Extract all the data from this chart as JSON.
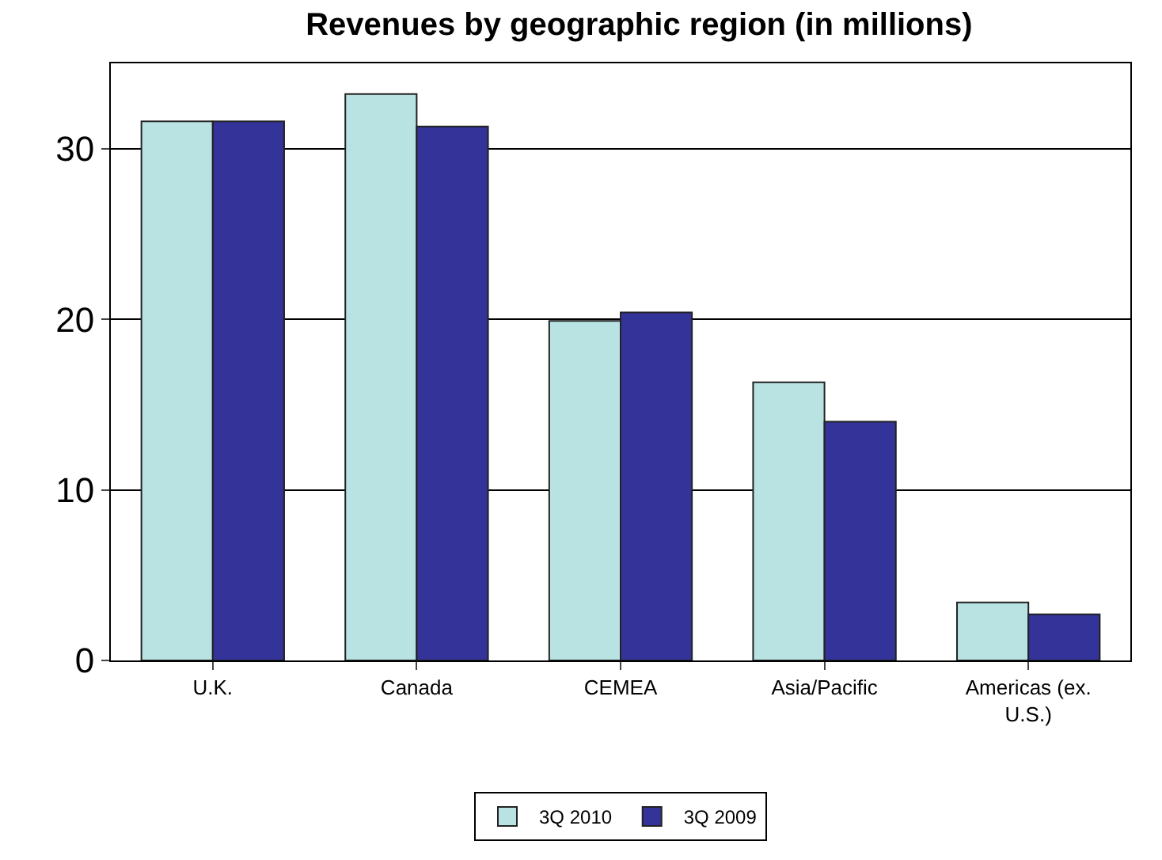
{
  "chart_data": {
    "type": "bar",
    "title": "Revenues by geographic region (in millions)",
    "categories": [
      "U.K.",
      "Canada",
      "CEMEA",
      "Asia/Pacific",
      "Americas (ex.\nU.S.)"
    ],
    "series": [
      {
        "name": "3Q 2010",
        "color": "#b9e3e3",
        "values": [
          31.6,
          33.2,
          19.9,
          16.3,
          3.4
        ]
      },
      {
        "name": "3Q 2009",
        "color": "#333399",
        "values": [
          31.6,
          31.3,
          20.4,
          14.0,
          2.7
        ]
      }
    ],
    "ylim": [
      0,
      35
    ],
    "yticks": [
      0,
      10,
      20,
      30
    ],
    "grid": "y",
    "legend": "bottom"
  }
}
